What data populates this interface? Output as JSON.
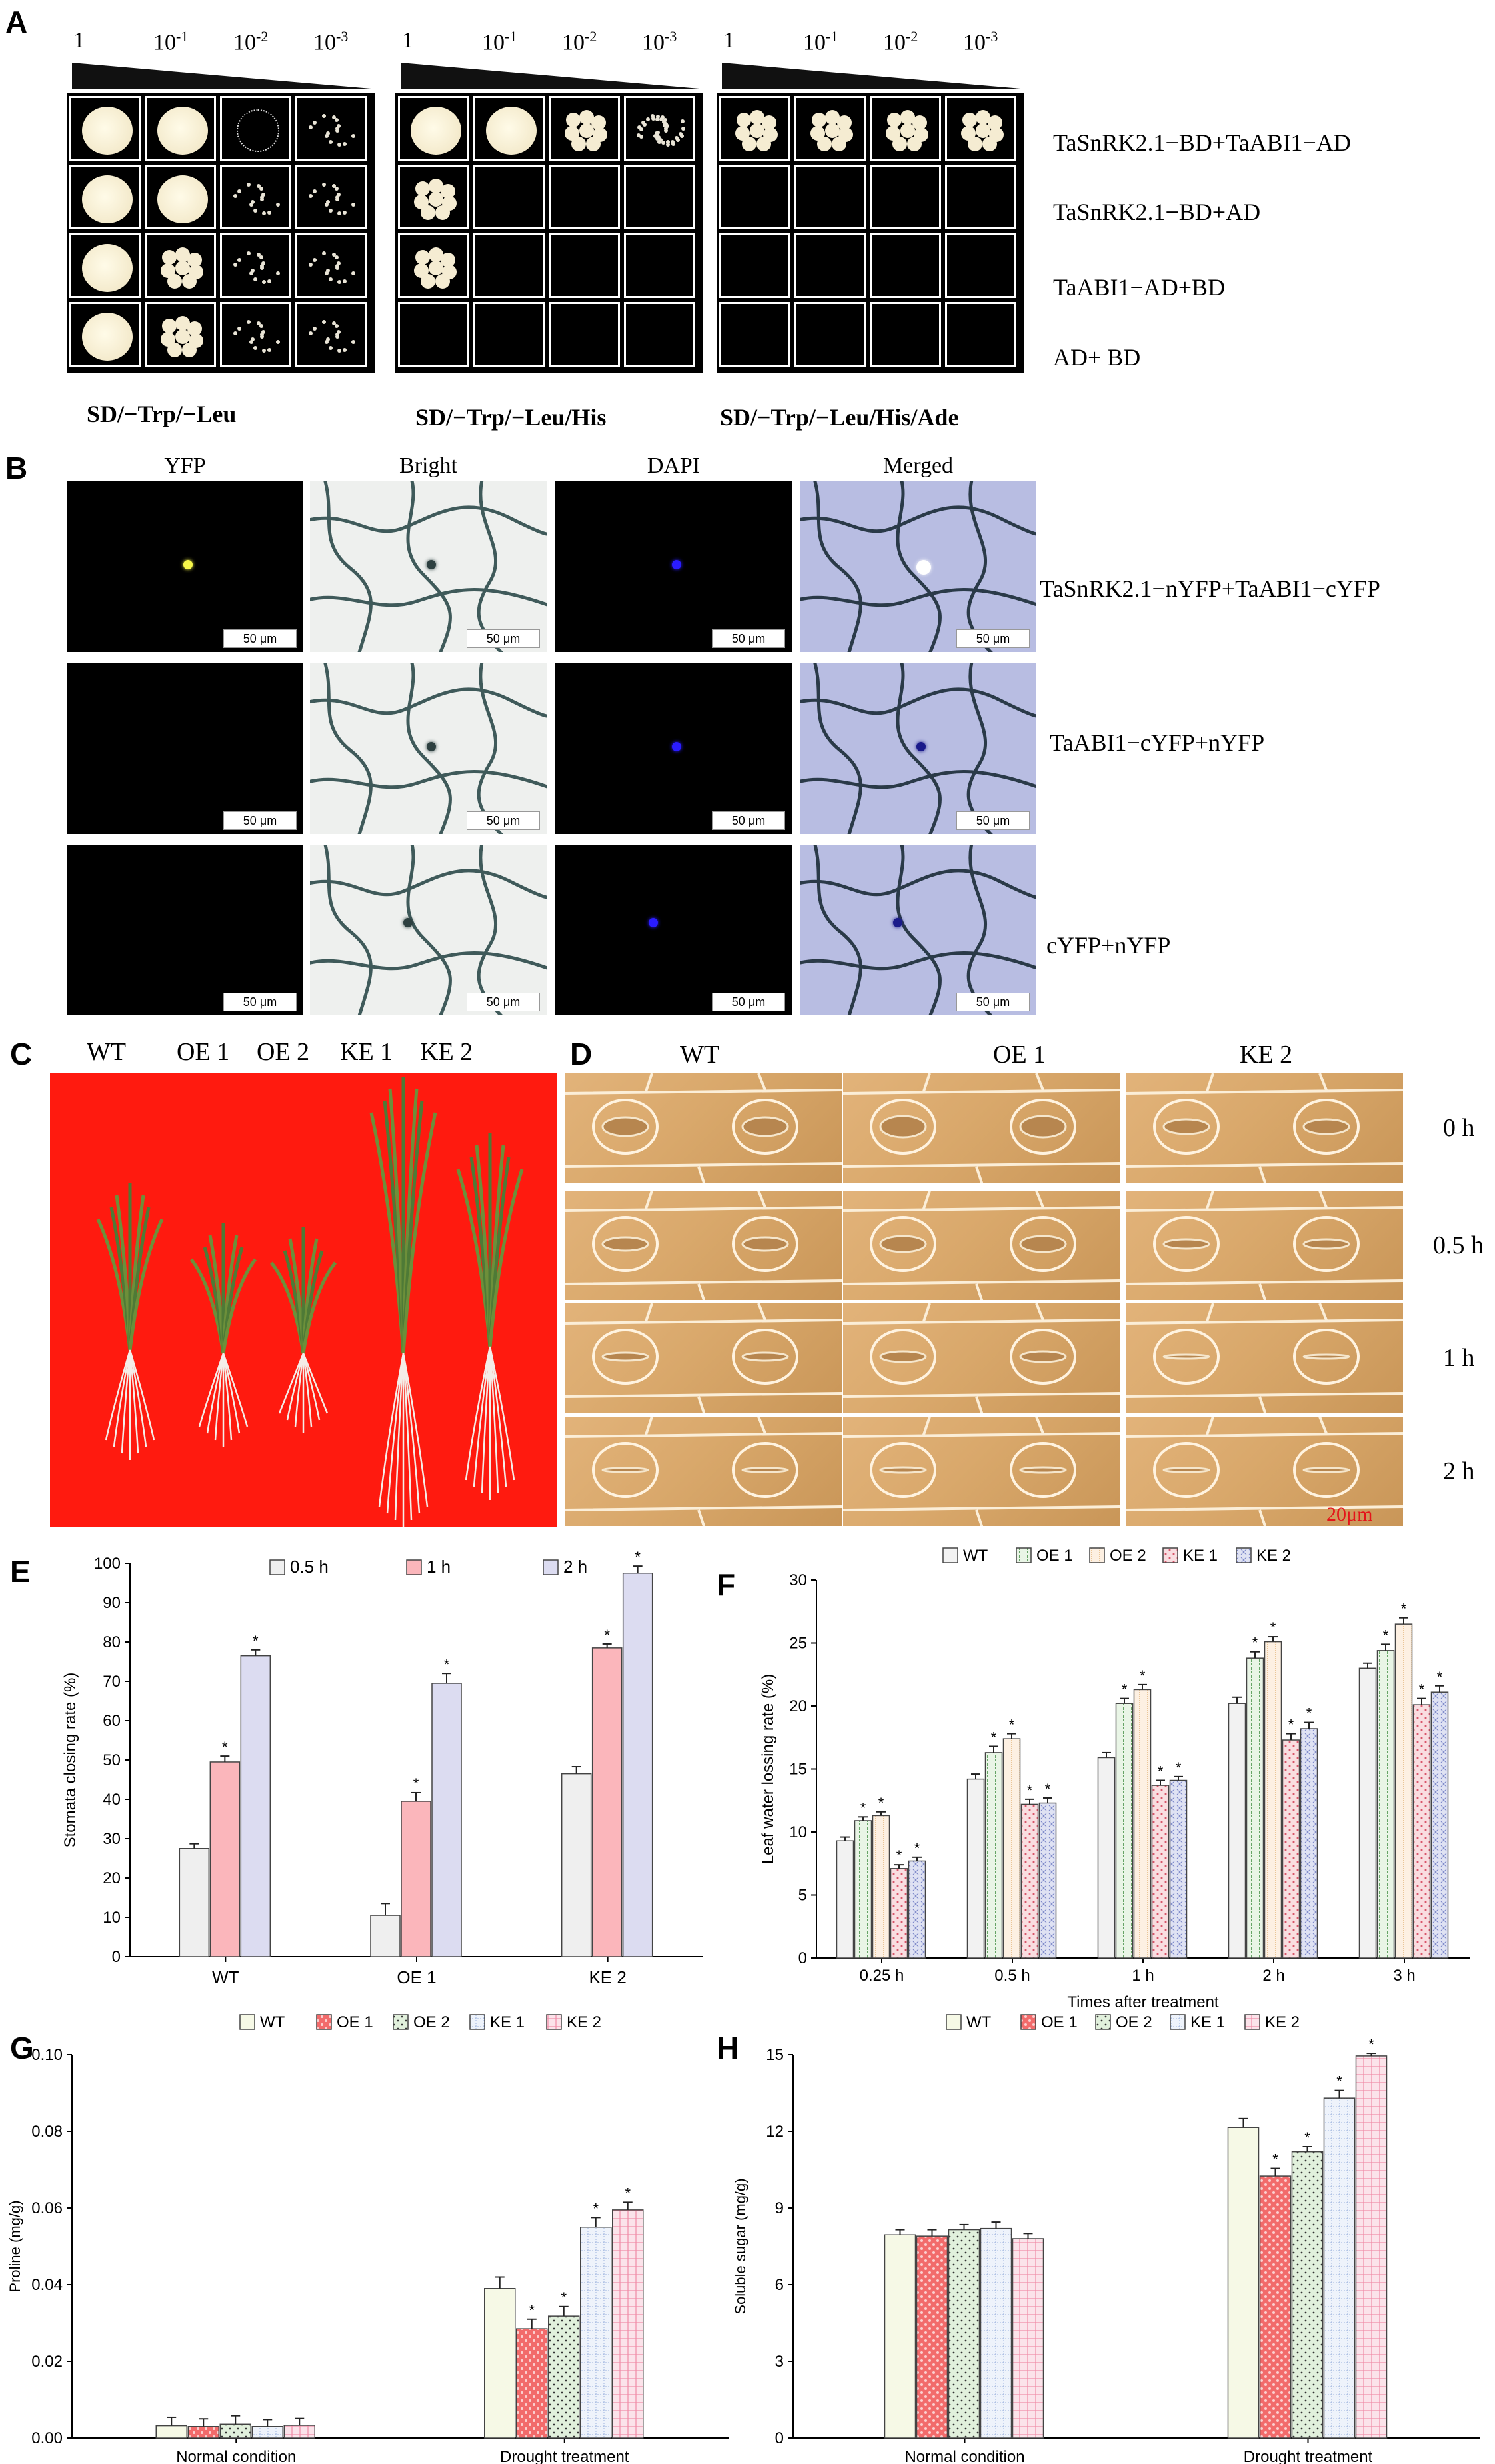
{
  "panel_a": {
    "label": "A",
    "dilutions": [
      "1",
      "10",
      "10",
      "10"
    ],
    "dilution_exponents": [
      "",
      "-1",
      "-2",
      "-3"
    ],
    "conditions": [
      "SD/−Trp/−Leu",
      "SD/−Trp/−Leu/His",
      "SD/−Trp/−Leu/His/Ade"
    ],
    "combos": [
      "TaSnRK2.1−BD+TaABI1−AD",
      "TaSnRK2.1−BD+AD",
      "TaABI1−AD+BD",
      "AD+ BD"
    ]
  },
  "panel_b": {
    "label": "B",
    "columns": [
      "YFP",
      "Bright",
      "DAPI",
      "Merged"
    ],
    "rows": [
      "TaSnRK2.1−nYFP+TaABI1−cYFP",
      "TaABI1−cYFP+nYFP",
      "cYFP+nYFP"
    ],
    "scale_text": "50 μm"
  },
  "panel_c": {
    "label": "C",
    "lines": [
      "WT",
      "OE 1",
      "OE 2",
      "KE 1",
      "KE 2"
    ]
  },
  "panel_d": {
    "label": "D",
    "columns": [
      "WT",
      "OE 1",
      "KE 2"
    ],
    "times": [
      "0 h",
      "0.5 h",
      "1 h",
      "2 h"
    ],
    "scale_text": "20μm"
  },
  "chart_data": [
    {
      "id": "E",
      "type": "bar",
      "label": "E",
      "ylabel": "Stomata closing rate (%)",
      "xlabel": "",
      "ylim": [
        0,
        100
      ],
      "yticks": [
        0,
        10,
        20,
        30,
        40,
        50,
        60,
        70,
        80,
        90,
        100
      ],
      "categories": [
        "WT",
        "OE 1",
        "KE 2"
      ],
      "legend_position": "top",
      "series": [
        {
          "name": "0.5 h",
          "color": "#efefef",
          "values": [
            27.5,
            10.5,
            46.5
          ],
          "errors": [
            1.2,
            3.0,
            1.8
          ],
          "sig": [
            false,
            false,
            false
          ]
        },
        {
          "name": "1 h",
          "color": "#fbb6bb",
          "values": [
            49.5,
            39.5,
            78.5
          ],
          "errors": [
            1.5,
            2.2,
            1.0
          ],
          "sig": [
            true,
            true,
            true
          ]
        },
        {
          "name": "2 h",
          "color": "#dcdcf1",
          "values": [
            76.5,
            69.5,
            97.5
          ],
          "errors": [
            1.5,
            2.5,
            1.8
          ],
          "sig": [
            true,
            true,
            true
          ]
        }
      ]
    },
    {
      "id": "F",
      "type": "bar",
      "label": "F",
      "ylabel": "Leaf water lossing rate (%)",
      "xlabel": "Times after treatment",
      "ylim": [
        0,
        30
      ],
      "yticks": [
        0,
        5,
        10,
        15,
        20,
        25,
        30
      ],
      "categories": [
        "0.25 h",
        "0.5 h",
        "1 h",
        "2 h",
        "3 h"
      ],
      "legend_position": "top",
      "series": [
        {
          "name": "WT",
          "color": "#f2f2f2",
          "values": [
            9.3,
            14.2,
            15.9,
            20.2,
            23.0
          ],
          "errors": [
            0.3,
            0.4,
            0.4,
            0.5,
            0.4
          ],
          "sig": [
            false,
            false,
            false,
            false,
            false
          ]
        },
        {
          "name": "OE 1",
          "color": "#e9f5e6",
          "values": [
            10.9,
            16.3,
            20.2,
            23.8,
            24.4
          ],
          "errors": [
            0.3,
            0.5,
            0.4,
            0.5,
            0.5
          ],
          "sig": [
            true,
            true,
            true,
            true,
            true
          ]
        },
        {
          "name": "OE 2",
          "color": "#fdf0e2",
          "values": [
            11.3,
            17.4,
            21.3,
            25.1,
            26.5
          ],
          "errors": [
            0.3,
            0.4,
            0.4,
            0.4,
            0.5
          ],
          "sig": [
            true,
            true,
            true,
            true,
            true
          ]
        },
        {
          "name": "KE 1",
          "color": "#f9dde0",
          "values": [
            7.1,
            12.2,
            13.7,
            17.3,
            20.1
          ],
          "errors": [
            0.3,
            0.4,
            0.4,
            0.5,
            0.5
          ],
          "sig": [
            true,
            true,
            true,
            true,
            true
          ]
        },
        {
          "name": "KE 2",
          "color": "#dfe2f3",
          "values": [
            7.7,
            12.3,
            14.1,
            18.2,
            21.1
          ],
          "errors": [
            0.3,
            0.4,
            0.3,
            0.5,
            0.5
          ],
          "sig": [
            true,
            true,
            true,
            true,
            true
          ]
        }
      ]
    },
    {
      "id": "G",
      "type": "bar",
      "label": "G",
      "ylabel": "Proline (mg/g)",
      "xlabel": "",
      "ylim": [
        0,
        0.1
      ],
      "yticks": [
        0.0,
        0.02,
        0.04,
        0.06,
        0.08,
        0.1
      ],
      "ytick_labels": [
        "0.00",
        "0.02",
        "0.04",
        "0.06",
        "0.08",
        "0.10"
      ],
      "categories": [
        "Normal condition",
        "Drought treatment"
      ],
      "legend_position": "top",
      "series": [
        {
          "name": "WT",
          "color": "#f6f9e6",
          "values": [
            0.0032,
            0.039
          ],
          "errors": [
            0.0022,
            0.003
          ],
          "sig": [
            false,
            false
          ]
        },
        {
          "name": "OE 1",
          "color": "#f58a8a",
          "values": [
            0.003,
            0.0285
          ],
          "errors": [
            0.002,
            0.0025
          ],
          "sig": [
            false,
            true
          ]
        },
        {
          "name": "OE 2",
          "color": "#e1f0dc",
          "values": [
            0.0036,
            0.0318
          ],
          "errors": [
            0.0022,
            0.0025
          ],
          "sig": [
            false,
            true
          ]
        },
        {
          "name": "KE 1",
          "color": "#eef3fb",
          "values": [
            0.003,
            0.055
          ],
          "errors": [
            0.0018,
            0.0025
          ],
          "sig": [
            false,
            true
          ]
        },
        {
          "name": "KE 2",
          "color": "#fbe3ea",
          "values": [
            0.0033,
            0.0595
          ],
          "errors": [
            0.0018,
            0.002
          ],
          "sig": [
            false,
            true
          ]
        }
      ]
    },
    {
      "id": "H",
      "type": "bar",
      "label": "H",
      "ylabel": "Soluble sugar (mg/g)",
      "xlabel": "",
      "ylim": [
        0,
        15
      ],
      "yticks": [
        0,
        3,
        6,
        9,
        12,
        15
      ],
      "categories": [
        "Normal condition",
        "Drought treatment"
      ],
      "legend_position": "top",
      "series": [
        {
          "name": "WT",
          "color": "#f6f9e6",
          "values": [
            7.95,
            12.15
          ],
          "errors": [
            0.2,
            0.35
          ],
          "sig": [
            false,
            false
          ]
        },
        {
          "name": "OE 1",
          "color": "#f58a8a",
          "values": [
            7.9,
            10.25
          ],
          "errors": [
            0.25,
            0.3
          ],
          "sig": [
            false,
            true
          ]
        },
        {
          "name": "OE 2",
          "color": "#e1f0dc",
          "values": [
            8.15,
            11.2
          ],
          "errors": [
            0.2,
            0.2
          ],
          "sig": [
            false,
            true
          ]
        },
        {
          "name": "KE 1",
          "color": "#eef3fb",
          "values": [
            8.2,
            13.3
          ],
          "errors": [
            0.25,
            0.3
          ],
          "sig": [
            false,
            true
          ]
        },
        {
          "name": "KE 2",
          "color": "#fbe3ea",
          "values": [
            7.8,
            14.95
          ],
          "errors": [
            0.2,
            0.1
          ],
          "sig": [
            false,
            true
          ]
        }
      ]
    }
  ]
}
